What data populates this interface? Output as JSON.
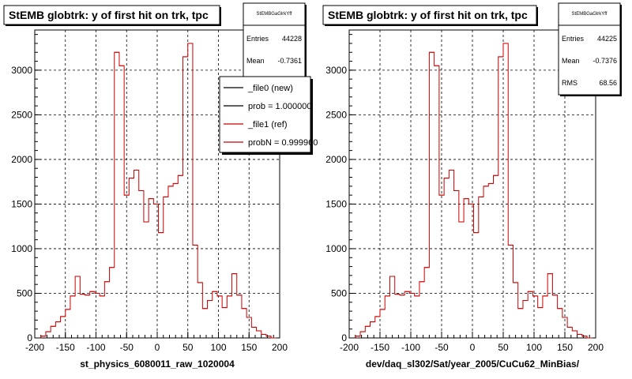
{
  "footer_note": "",
  "chart_data": [
    {
      "type": "histogram",
      "title": "StEMB globtrk: y of first hit on trk, tpc",
      "xlabel": "st_physics_6080011_raw_1020004",
      "ylabel": "",
      "xlim": [
        -200,
        200
      ],
      "ylim": [
        0,
        3450
      ],
      "x_ticks": [
        -200,
        -150,
        -100,
        -50,
        0,
        50,
        100,
        150,
        200
      ],
      "y_ticks": [
        0,
        500,
        1000,
        1500,
        2000,
        2500,
        3000
      ],
      "grid": true,
      "bin_edges": [
        -190,
        -182,
        -174,
        -166,
        -158,
        -150,
        -142,
        -134,
        -126,
        -118,
        -110,
        -102,
        -94,
        -86,
        -78,
        -70,
        -62,
        -54,
        -46,
        -38,
        -30,
        -22,
        -14,
        -6,
        2,
        10,
        18,
        26,
        34,
        42,
        50,
        58,
        66,
        74,
        82,
        90,
        98,
        106,
        114,
        122,
        130,
        138,
        146,
        154,
        162,
        170,
        178,
        186,
        194
      ],
      "values": [
        20,
        70,
        130,
        180,
        240,
        320,
        470,
        690,
        490,
        480,
        520,
        500,
        470,
        630,
        790,
        3200,
        3050,
        1600,
        1790,
        1880,
        1650,
        1300,
        1560,
        1500,
        1180,
        1580,
        1700,
        1730,
        1820,
        3150,
        3300,
        1040,
        620,
        330,
        420,
        520,
        470,
        340,
        470,
        720,
        480,
        330,
        230,
        120,
        80,
        40,
        20,
        0
      ],
      "series": [
        {
          "name": "_file0 (new)",
          "color": "#000000"
        },
        {
          "name": "_file1 (ref)",
          "color": "#cc0000"
        }
      ],
      "stats": {
        "name": "StEMBGaGlrkYff",
        "rows": [
          {
            "label": "Entries",
            "value": "44228"
          },
          {
            "label": "Mean",
            "value": "-0.7361"
          }
        ]
      },
      "legend": {
        "entries": [
          {
            "text": "_file0 (new)",
            "color": "#000000"
          },
          {
            "text": "prob = 1.000000",
            "color": "#000000"
          },
          {
            "text": "_file1 (ref)",
            "color": "#cc0000"
          },
          {
            "text": "probN = 0.999960",
            "color": "#cc0000"
          }
        ]
      }
    },
    {
      "type": "histogram",
      "title": "StEMB globtrk: y of first hit on trk, tpc",
      "xlabel": "dev/daq_sl302/Sat/year_2005/CuCu62_MinBias/",
      "ylabel": "",
      "xlim": [
        -200,
        200
      ],
      "ylim": [
        0,
        3450
      ],
      "x_ticks": [
        -200,
        -150,
        -100,
        -50,
        0,
        50,
        100,
        150,
        200
      ],
      "y_ticks": [
        0,
        500,
        1000,
        1500,
        2000,
        2500,
        3000
      ],
      "grid": true,
      "bin_edges": [
        -190,
        -182,
        -174,
        -166,
        -158,
        -150,
        -142,
        -134,
        -126,
        -118,
        -110,
        -102,
        -94,
        -86,
        -78,
        -70,
        -62,
        -54,
        -46,
        -38,
        -30,
        -22,
        -14,
        -6,
        2,
        10,
        18,
        26,
        34,
        42,
        50,
        58,
        66,
        74,
        82,
        90,
        98,
        106,
        114,
        122,
        130,
        138,
        146,
        154,
        162,
        170,
        178,
        186,
        194
      ],
      "values": [
        20,
        70,
        130,
        180,
        240,
        320,
        470,
        690,
        490,
        480,
        520,
        500,
        470,
        630,
        790,
        3200,
        3050,
        1600,
        1790,
        1880,
        1650,
        1300,
        1560,
        1500,
        1180,
        1580,
        1700,
        1730,
        1820,
        3150,
        3300,
        1040,
        620,
        330,
        420,
        520,
        470,
        340,
        470,
        720,
        480,
        330,
        230,
        120,
        80,
        40,
        20,
        0
      ],
      "series": [
        {
          "name": "_file1 (ref)",
          "color": "#cc0000"
        }
      ],
      "stats": {
        "name": "StEMBGaGlrkYff",
        "rows": [
          {
            "label": "Entries",
            "value": "44225"
          },
          {
            "label": "Mean",
            "value": "-0.7376"
          },
          {
            "label": "RMS",
            "value": "68.56"
          }
        ]
      }
    }
  ]
}
